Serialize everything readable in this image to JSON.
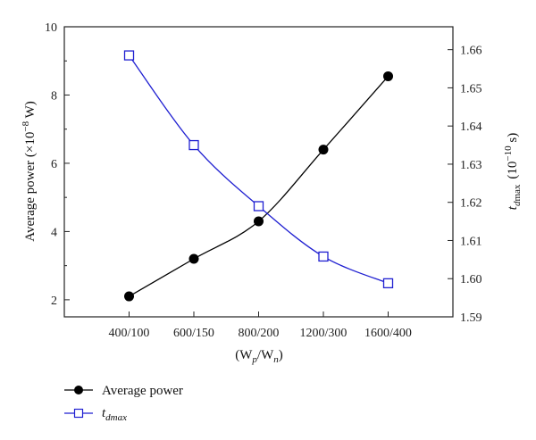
{
  "chart_data": {
    "type": "line",
    "categories": [
      "400/100",
      "600/150",
      "800/200",
      "1200/300",
      "1600/400"
    ],
    "xlabel": {
      "main": "(W",
      "sub1": "p",
      "mid": "/W",
      "sub2": "n",
      "end": ")"
    },
    "ylabel_left": {
      "main": "Average power (×10",
      "sup": "−8",
      "end": " W)"
    },
    "ylabel_right": {
      "t": "t",
      "sub": "d",
      "subrest": "max",
      "pre": "(10",
      "sup": "−10",
      "end": " s)"
    },
    "ylim_left": [
      1.5,
      10
    ],
    "yticks_left": [
      "2",
      "4",
      "6",
      "8",
      "10"
    ],
    "ylim_right": [
      1.59,
      1.666
    ],
    "yticks_right": [
      "1.59",
      "1.60",
      "1.61",
      "1.62",
      "1.63",
      "1.64",
      "1.65",
      "1.66"
    ],
    "series": [
      {
        "name": "Average power",
        "axis": "left",
        "marker": "filled-circle",
        "color": "#000000",
        "values": [
          2.1,
          3.2,
          4.3,
          6.4,
          8.55
        ]
      },
      {
        "name": "t_dmax",
        "name_main": "t",
        "name_sub": "dmax",
        "axis": "right",
        "marker": "open-square",
        "color": "#1f1fd1",
        "values": [
          1.6585,
          1.635,
          1.619,
          1.6058,
          1.5988
        ]
      }
    ],
    "legend_position": "bottom-left"
  }
}
